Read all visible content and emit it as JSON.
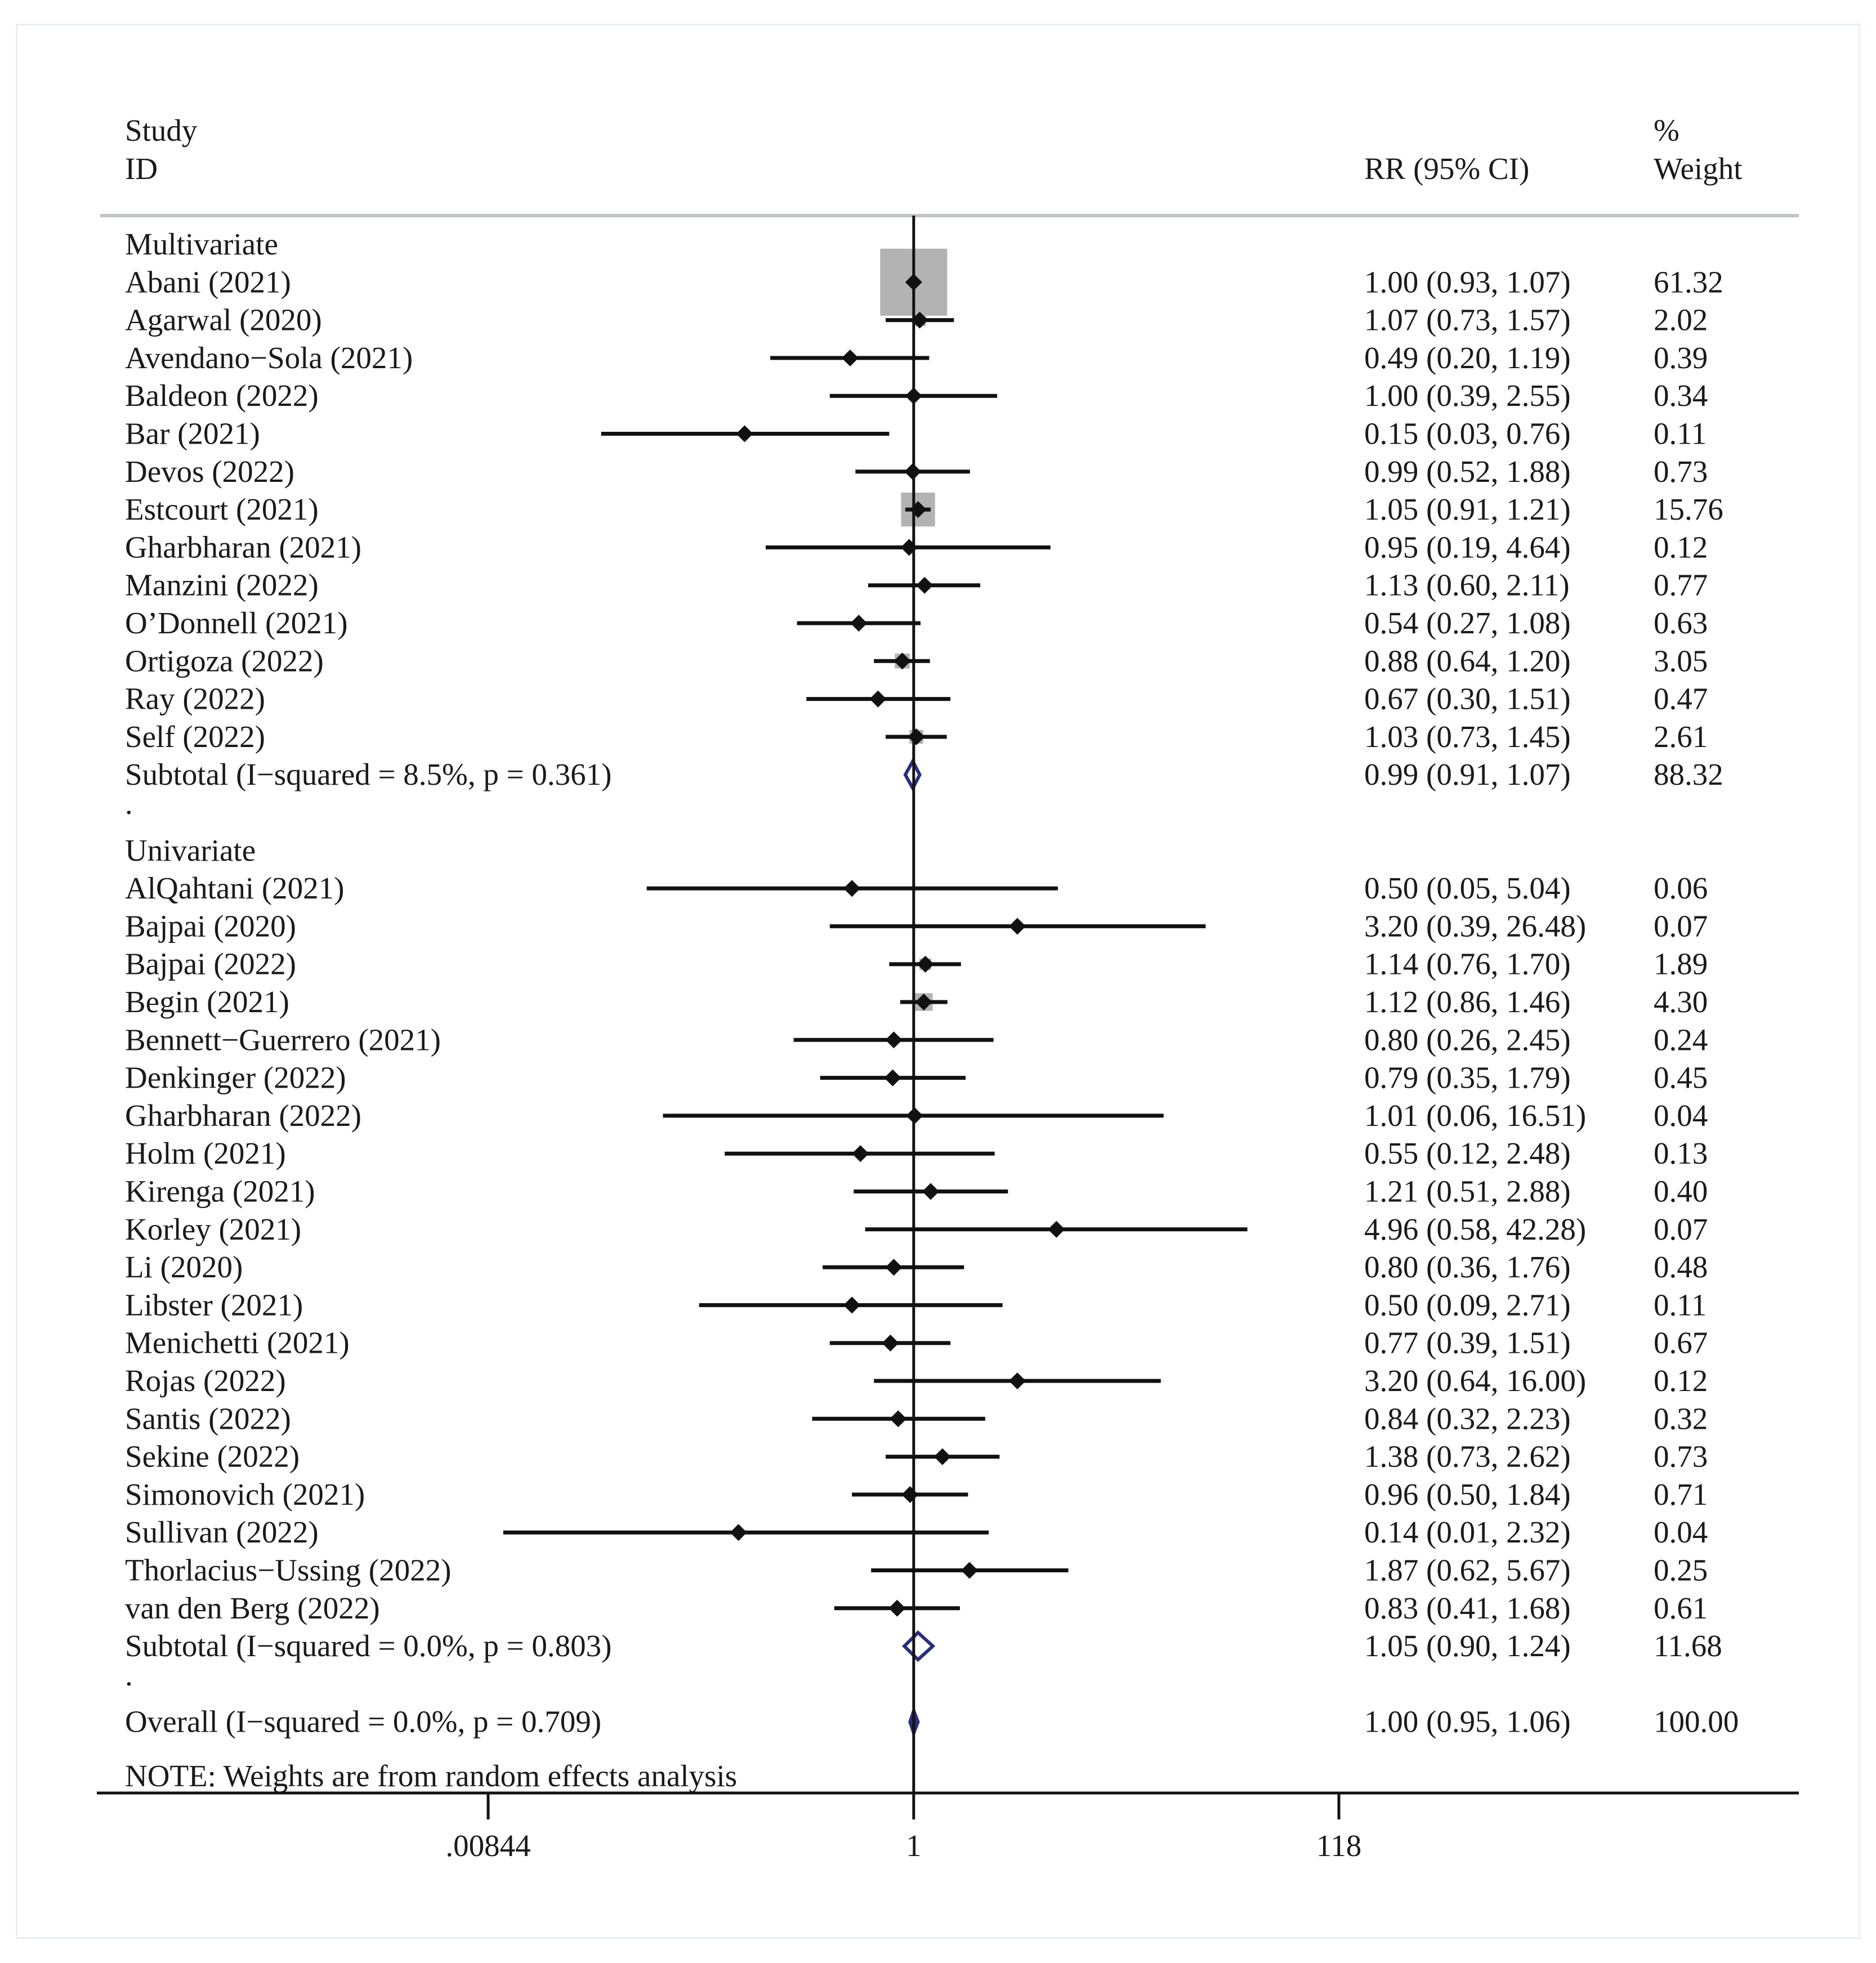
{
  "chart_data": {
    "type": "forest",
    "headers": {
      "study_line1": "Study",
      "study_line2": "ID",
      "rr": "RR (95% CI)",
      "weight_line1": "%",
      "weight_line2": "Weight"
    },
    "x_scale": "log",
    "x_range": [
      0.00844,
      118
    ],
    "x_ticks": [
      {
        "value": 0.00844,
        "label": ".00844"
      },
      {
        "value": 1,
        "label": "1"
      },
      {
        "value": 118,
        "label": "118"
      }
    ],
    "reference_line": 1,
    "rows": [
      {
        "kind": "group",
        "label": "Multivariate"
      },
      {
        "kind": "study",
        "label": "Abani (2021)",
        "rr": 1.0,
        "lo": 0.93,
        "hi": 1.07,
        "weight": 61.32,
        "rr_text": "1.00 (0.93, 1.07)",
        "weight_text": "61.32"
      },
      {
        "kind": "study",
        "label": "Agarwal (2020)",
        "rr": 1.07,
        "lo": 0.73,
        "hi": 1.57,
        "weight": 2.02,
        "rr_text": "1.07 (0.73, 1.57)",
        "weight_text": "2.02"
      },
      {
        "kind": "study",
        "label": "Avendano−Sola (2021)",
        "rr": 0.49,
        "lo": 0.2,
        "hi": 1.19,
        "weight": 0.39,
        "rr_text": "0.49 (0.20, 1.19)",
        "weight_text": "0.39"
      },
      {
        "kind": "study",
        "label": "Baldeon (2022)",
        "rr": 1.0,
        "lo": 0.39,
        "hi": 2.55,
        "weight": 0.34,
        "rr_text": "1.00 (0.39, 2.55)",
        "weight_text": "0.34"
      },
      {
        "kind": "study",
        "label": "Bar (2021)",
        "rr": 0.15,
        "lo": 0.03,
        "hi": 0.76,
        "weight": 0.11,
        "rr_text": "0.15 (0.03, 0.76)",
        "weight_text": "0.11"
      },
      {
        "kind": "study",
        "label": "Devos (2022)",
        "rr": 0.99,
        "lo": 0.52,
        "hi": 1.88,
        "weight": 0.73,
        "rr_text": "0.99 (0.52, 1.88)",
        "weight_text": "0.73"
      },
      {
        "kind": "study",
        "label": "Estcourt (2021)",
        "rr": 1.05,
        "lo": 0.91,
        "hi": 1.21,
        "weight": 15.76,
        "rr_text": "1.05 (0.91, 1.21)",
        "weight_text": "15.76"
      },
      {
        "kind": "study",
        "label": "Gharbharan (2021)",
        "rr": 0.95,
        "lo": 0.19,
        "hi": 4.64,
        "weight": 0.12,
        "rr_text": "0.95 (0.19, 4.64)",
        "weight_text": "0.12"
      },
      {
        "kind": "study",
        "label": "Manzini (2022)",
        "rr": 1.13,
        "lo": 0.6,
        "hi": 2.11,
        "weight": 0.77,
        "rr_text": "1.13 (0.60, 2.11)",
        "weight_text": "0.77"
      },
      {
        "kind": "study",
        "label": "O’Donnell (2021)",
        "rr": 0.54,
        "lo": 0.27,
        "hi": 1.08,
        "weight": 0.63,
        "rr_text": "0.54 (0.27, 1.08)",
        "weight_text": "0.63"
      },
      {
        "kind": "study",
        "label": "Ortigoza (2022)",
        "rr": 0.88,
        "lo": 0.64,
        "hi": 1.2,
        "weight": 3.05,
        "rr_text": "0.88 (0.64, 1.20)",
        "weight_text": "3.05"
      },
      {
        "kind": "study",
        "label": "Ray (2022)",
        "rr": 0.67,
        "lo": 0.3,
        "hi": 1.51,
        "weight": 0.47,
        "rr_text": "0.67 (0.30, 1.51)",
        "weight_text": "0.47"
      },
      {
        "kind": "study",
        "label": "Self (2022)",
        "rr": 1.03,
        "lo": 0.73,
        "hi": 1.45,
        "weight": 2.61,
        "rr_text": "1.03 (0.73, 1.45)",
        "weight_text": "2.61"
      },
      {
        "kind": "subtotal",
        "label": "Subtotal  (I−squared = 8.5%, p = 0.361)",
        "rr": 0.99,
        "lo": 0.91,
        "hi": 1.07,
        "weight": 88.32,
        "rr_text": "0.99 (0.91, 1.07)",
        "weight_text": "88.32"
      },
      {
        "kind": "spacer",
        "label": "."
      },
      {
        "kind": "group",
        "label": "Univariate"
      },
      {
        "kind": "study",
        "label": "AlQahtani (2021)",
        "rr": 0.5,
        "lo": 0.05,
        "hi": 5.04,
        "weight": 0.06,
        "rr_text": "0.50 (0.05, 5.04)",
        "weight_text": "0.06"
      },
      {
        "kind": "study",
        "label": "Bajpai (2020)",
        "rr": 3.2,
        "lo": 0.39,
        "hi": 26.48,
        "weight": 0.07,
        "rr_text": "3.20 (0.39, 26.48)",
        "weight_text": "0.07"
      },
      {
        "kind": "study",
        "label": "Bajpai (2022)",
        "rr": 1.14,
        "lo": 0.76,
        "hi": 1.7,
        "weight": 1.89,
        "rr_text": "1.14 (0.76, 1.70)",
        "weight_text": "1.89"
      },
      {
        "kind": "study",
        "label": "Begin (2021)",
        "rr": 1.12,
        "lo": 0.86,
        "hi": 1.46,
        "weight": 4.3,
        "rr_text": "1.12 (0.86, 1.46)",
        "weight_text": "4.30"
      },
      {
        "kind": "study",
        "label": "Bennett−Guerrero (2021)",
        "rr": 0.8,
        "lo": 0.26,
        "hi": 2.45,
        "weight": 0.24,
        "rr_text": "0.80 (0.26, 2.45)",
        "weight_text": "0.24"
      },
      {
        "kind": "study",
        "label": "Denkinger (2022)",
        "rr": 0.79,
        "lo": 0.35,
        "hi": 1.79,
        "weight": 0.45,
        "rr_text": "0.79 (0.35, 1.79)",
        "weight_text": "0.45"
      },
      {
        "kind": "study",
        "label": "Gharbharan (2022)",
        "rr": 1.01,
        "lo": 0.06,
        "hi": 16.51,
        "weight": 0.04,
        "rr_text": "1.01 (0.06, 16.51)",
        "weight_text": "0.04"
      },
      {
        "kind": "study",
        "label": "Holm (2021)",
        "rr": 0.55,
        "lo": 0.12,
        "hi": 2.48,
        "weight": 0.13,
        "rr_text": "0.55 (0.12, 2.48)",
        "weight_text": "0.13"
      },
      {
        "kind": "study",
        "label": "Kirenga (2021)",
        "rr": 1.21,
        "lo": 0.51,
        "hi": 2.88,
        "weight": 0.4,
        "rr_text": "1.21 (0.51, 2.88)",
        "weight_text": "0.40"
      },
      {
        "kind": "study",
        "label": "Korley (2021)",
        "rr": 4.96,
        "lo": 0.58,
        "hi": 42.28,
        "weight": 0.07,
        "rr_text": "4.96 (0.58, 42.28)",
        "weight_text": "0.07"
      },
      {
        "kind": "study",
        "label": "Li (2020)",
        "rr": 0.8,
        "lo": 0.36,
        "hi": 1.76,
        "weight": 0.48,
        "rr_text": "0.80 (0.36, 1.76)",
        "weight_text": "0.48"
      },
      {
        "kind": "study",
        "label": "Libster (2021)",
        "rr": 0.5,
        "lo": 0.09,
        "hi": 2.71,
        "weight": 0.11,
        "rr_text": "0.50 (0.09, 2.71)",
        "weight_text": "0.11"
      },
      {
        "kind": "study",
        "label": "Menichetti (2021)",
        "rr": 0.77,
        "lo": 0.39,
        "hi": 1.51,
        "weight": 0.67,
        "rr_text": "0.77 (0.39, 1.51)",
        "weight_text": "0.67"
      },
      {
        "kind": "study",
        "label": "Rojas (2022)",
        "rr": 3.2,
        "lo": 0.64,
        "hi": 16.0,
        "weight": 0.12,
        "rr_text": "3.20 (0.64, 16.00)",
        "weight_text": "0.12"
      },
      {
        "kind": "study",
        "label": "Santis (2022)",
        "rr": 0.84,
        "lo": 0.32,
        "hi": 2.23,
        "weight": 0.32,
        "rr_text": "0.84 (0.32, 2.23)",
        "weight_text": "0.32"
      },
      {
        "kind": "study",
        "label": "Sekine (2022)",
        "rr": 1.38,
        "lo": 0.73,
        "hi": 2.62,
        "weight": 0.73,
        "rr_text": "1.38 (0.73, 2.62)",
        "weight_text": "0.73"
      },
      {
        "kind": "study",
        "label": "Simonovich (2021)",
        "rr": 0.96,
        "lo": 0.5,
        "hi": 1.84,
        "weight": 0.71,
        "rr_text": "0.96 (0.50, 1.84)",
        "weight_text": "0.71"
      },
      {
        "kind": "study",
        "label": "Sullivan (2022)",
        "rr": 0.14,
        "lo": 0.01,
        "hi": 2.32,
        "weight": 0.04,
        "rr_text": "0.14 (0.01, 2.32)",
        "weight_text": "0.04"
      },
      {
        "kind": "study",
        "label": "Thorlacius−Ussing (2022)",
        "rr": 1.87,
        "lo": 0.62,
        "hi": 5.67,
        "weight": 0.25,
        "rr_text": "1.87 (0.62, 5.67)",
        "weight_text": "0.25"
      },
      {
        "kind": "study",
        "label": "van den Berg (2022)",
        "rr": 0.83,
        "lo": 0.41,
        "hi": 1.68,
        "weight": 0.61,
        "rr_text": "0.83 (0.41, 1.68)",
        "weight_text": "0.61"
      },
      {
        "kind": "subtotal",
        "label": "Subtotal  (I−squared = 0.0%, p = 0.803)",
        "rr": 1.05,
        "lo": 0.9,
        "hi": 1.24,
        "weight": 11.68,
        "rr_text": "1.05 (0.90, 1.24)",
        "weight_text": "11.68"
      },
      {
        "kind": "spacer",
        "label": "."
      },
      {
        "kind": "overall",
        "label": "Overall  (I−squared = 0.0%, p = 0.709)",
        "rr": 1.0,
        "lo": 0.95,
        "hi": 1.06,
        "weight": 100.0,
        "rr_text": "1.00 (0.95, 1.06)",
        "weight_text": "100.00"
      }
    ],
    "note": "NOTE: Weights are from random effects analysis",
    "colors": {
      "line": "#111111",
      "weight_box": "#b3b3b3",
      "subtotal_diamond": "#2b2f7a",
      "overall_diamond": "#2b2f7a",
      "rule": "#bfc4c6"
    }
  }
}
